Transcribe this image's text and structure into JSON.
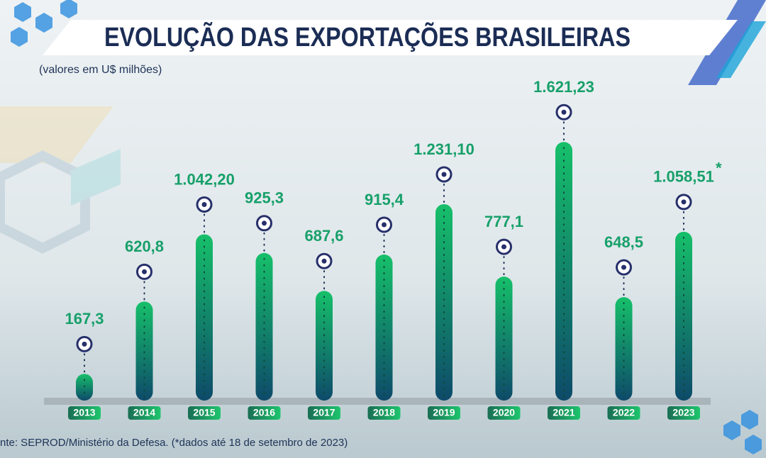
{
  "chart_data": {
    "type": "bar",
    "title": "EVOLUÇÃO DAS EXPORTAÇÕES BRASILEIRAS",
    "subtitle": "(valores em U$ milhões)",
    "categories": [
      "2013",
      "2014",
      "2015",
      "2016",
      "2017",
      "2018",
      "2019",
      "2020",
      "2021",
      "2022",
      "2023"
    ],
    "values": [
      167.3,
      620.8,
      1042.2,
      925.3,
      687.6,
      915.4,
      1231.1,
      777.1,
      1621.23,
      648.5,
      1058.51
    ],
    "value_labels": [
      "167,3",
      "620,8",
      "1.042,20",
      "925,3",
      "687,6",
      "915,4",
      "1.231,10",
      "777,1",
      "1.621,23",
      "648,5",
      "1.058,51"
    ],
    "annotation": "*",
    "source": "nte: SEPROD/Ministério da Defesa. (*dados até 18 de setembro de 2023)",
    "color": "#16b866"
  }
}
